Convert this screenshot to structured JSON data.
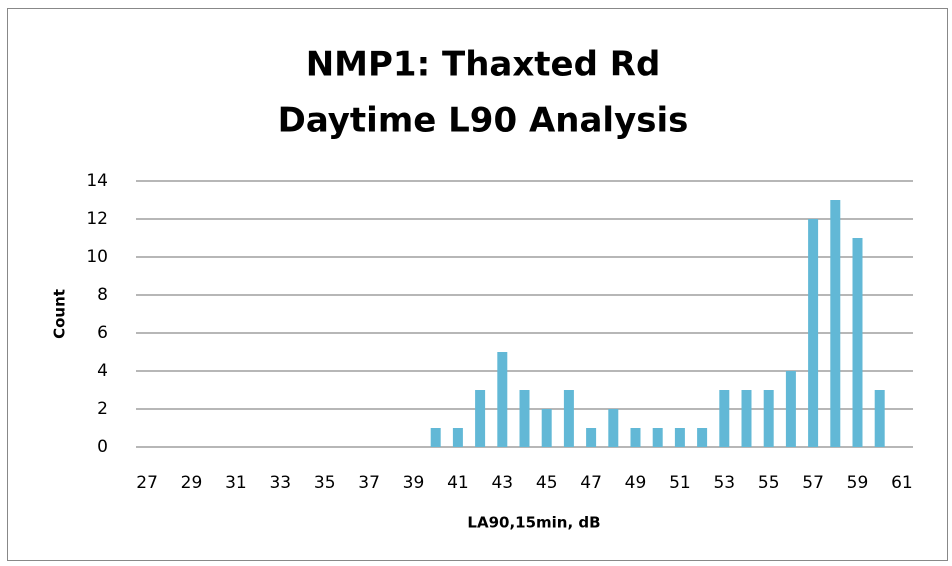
{
  "chart_data": {
    "type": "bar",
    "title": [
      "NMP1: Thaxted Rd",
      "Daytime L90 Analysis"
    ],
    "x_label": "LA90,15min, dB",
    "y_label": "Count",
    "categories": [
      "27",
      null,
      "29",
      null,
      "31",
      null,
      "33",
      null,
      "35",
      null,
      "37",
      null,
      "39",
      null,
      "41",
      null,
      "43",
      null,
      "45",
      null,
      "47",
      null,
      "49",
      null,
      "51",
      null,
      "53",
      null,
      "55",
      null,
      "57",
      null,
      "59",
      null,
      "61"
    ],
    "values": [
      0,
      0,
      0,
      0,
      0,
      0,
      0,
      0,
      0,
      0,
      0,
      0,
      0,
      1,
      1,
      3,
      5,
      3,
      2,
      3,
      1,
      2,
      1,
      1,
      1,
      1,
      3,
      3,
      3,
      4,
      12,
      13,
      11,
      3,
      0
    ],
    "color": "#62b8d6",
    "ylim": [
      0,
      14
    ],
    "yticks": [
      0,
      2,
      4,
      6,
      8,
      10,
      12,
      14
    ],
    "grid": true
  }
}
